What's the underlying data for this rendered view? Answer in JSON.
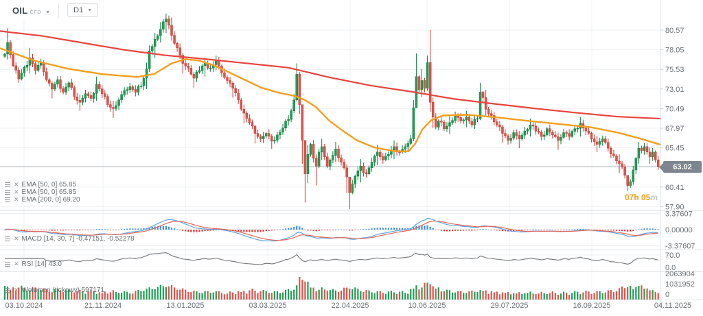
{
  "toolbar": {
    "symbol": "OIL",
    "market": "CFD",
    "timeframe": "D1"
  },
  "indicators": {
    "ema_labels": [
      {
        "label": "EMA [50, 0] 65.85"
      },
      {
        "label": "EMA [50, 0] 65.85"
      },
      {
        "label": "EMA [200, 0] 69.20"
      }
    ],
    "macd_label": "MACD [14, 30, 7] -0.47151, -0.52278",
    "rsi_label": "RSI [14] 43.0",
    "volume_label": "Wolumen (tickowy) 597171"
  },
  "timer": {
    "value": "07h 05",
    "suffix": "m"
  },
  "current_price": {
    "text": "63.02",
    "value": 63.02
  },
  "axes": {
    "price_ticks": [
      "80.57",
      "78.05",
      "75.53",
      "73.01",
      "70.49",
      "67.97",
      "65.45",
      "60.41",
      "57.90"
    ],
    "macd_ticks": [
      "3.37607",
      "0.00000",
      "-3.37607"
    ],
    "rsi_ticks": [
      "70.0",
      "0.0"
    ],
    "volume_ticks": [
      "2063904",
      "1031952",
      "0"
    ],
    "date_ticks": [
      "03.10.2024",
      "21.11.2024",
      "13.01.2025",
      "03.03.2025",
      "22.04.2025",
      "10.06.2025",
      "29.07.2025",
      "16.09.2025",
      "04.11.2025"
    ]
  },
  "chart_data": {
    "type": "candlestick",
    "title": "OIL CFD D1",
    "x_range": [
      "03.10.2024",
      "04.11.2025"
    ],
    "y_range": [
      57.9,
      82.7
    ],
    "n_candles": 236,
    "last_close": 63.02,
    "candle_keyframes": [
      [
        0,
        77.5
      ],
      [
        1,
        79.0,
        80.8,
        76.8
      ],
      [
        3,
        76.0
      ],
      [
        5,
        74.3
      ],
      [
        7,
        75.8
      ],
      [
        9,
        77.0,
        78.3,
        75.0
      ],
      [
        11,
        75.4
      ],
      [
        13,
        76.4
      ],
      [
        15,
        74.2
      ],
      [
        17,
        73.0,
        74.0,
        71.8
      ],
      [
        19,
        74.2
      ],
      [
        21,
        72.6
      ],
      [
        23,
        73.8
      ],
      [
        25,
        72.0
      ],
      [
        27,
        71.3,
        72.3,
        70.2
      ],
      [
        29,
        72.4
      ],
      [
        31,
        71.8
      ],
      [
        33,
        73.6,
        74.6,
        71.5
      ],
      [
        35,
        72.4
      ],
      [
        37,
        71.0
      ],
      [
        39,
        70.5,
        71.5,
        69.3
      ],
      [
        41,
        71.6
      ],
      [
        43,
        72.8
      ],
      [
        45,
        73.3
      ],
      [
        47,
        72.6
      ],
      [
        49,
        73.4
      ],
      [
        51,
        75.6,
        76.4,
        73.0
      ],
      [
        52,
        77.9,
        78.6,
        75.2
      ],
      [
        54,
        79.4,
        80.2,
        77.0
      ],
      [
        56,
        80.7,
        81.6,
        79.0
      ],
      [
        58,
        82.0,
        82.7,
        80.2
      ],
      [
        59,
        81.2
      ],
      [
        60,
        79.9,
        82.2,
        79.2
      ],
      [
        62,
        78.3
      ],
      [
        64,
        76.3,
        77.6,
        75.0
      ],
      [
        66,
        75.7
      ],
      [
        68,
        74.4,
        75.2,
        73.2
      ],
      [
        70,
        75.4
      ],
      [
        72,
        76.3,
        77.0,
        74.6
      ],
      [
        74,
        75.7
      ],
      [
        76,
        76.6,
        77.3,
        75.4
      ],
      [
        78,
        75.1
      ],
      [
        80,
        74.1
      ],
      [
        82,
        73.1,
        74.0,
        71.9
      ],
      [
        84,
        71.6
      ],
      [
        86,
        69.9,
        71.0,
        68.6
      ],
      [
        88,
        68.7
      ],
      [
        90,
        67.3,
        68.3,
        66.0
      ],
      [
        92,
        66.6
      ],
      [
        94,
        67.3
      ],
      [
        96,
        66.3,
        67.2,
        65.3
      ],
      [
        98,
        67.1
      ],
      [
        100,
        68.0
      ],
      [
        102,
        69.1
      ],
      [
        103,
        70.2
      ],
      [
        104,
        71.6,
        72.4,
        69.9
      ],
      [
        105,
        74.9,
        76.3,
        71.4
      ],
      [
        106,
        71.0,
        75.2,
        69.8
      ],
      [
        107,
        66.4,
        70.8,
        63.4
      ],
      [
        108,
        62.1,
        66.2,
        58.4
      ],
      [
        109,
        64.6,
        65.8,
        60.9
      ],
      [
        110,
        65.9
      ],
      [
        111,
        64.1
      ],
      [
        112,
        63.1,
        64.6,
        60.6
      ],
      [
        113,
        64.9
      ],
      [
        114,
        65.6,
        66.6,
        63.9
      ],
      [
        115,
        64.3
      ],
      [
        116,
        63.1
      ],
      [
        117,
        63.9
      ],
      [
        119,
        65.3,
        66.2,
        63.6
      ],
      [
        121,
        63.6
      ],
      [
        123,
        61.7,
        63.3,
        59.6
      ],
      [
        124,
        59.7,
        61.3,
        57.6
      ],
      [
        125,
        60.8
      ],
      [
        126,
        61.8
      ],
      [
        128,
        63.1,
        64.0,
        61.0
      ],
      [
        130,
        62.1
      ],
      [
        132,
        63.6
      ],
      [
        134,
        64.9,
        65.8,
        63.2
      ],
      [
        136,
        63.9
      ],
      [
        138,
        64.6
      ],
      [
        140,
        65.6,
        66.4,
        64.0
      ],
      [
        142,
        64.9
      ],
      [
        144,
        65.6
      ],
      [
        145,
        66.0
      ],
      [
        146,
        66.6
      ],
      [
        147,
        70.6,
        71.6,
        66.3
      ],
      [
        148,
        74.6,
        77.6,
        72.2
      ],
      [
        149,
        72.9
      ],
      [
        150,
        74.1,
        75.6,
        72.0
      ],
      [
        151,
        73.1
      ],
      [
        152,
        76.4,
        77.3,
        72.8
      ],
      [
        153,
        71.3,
        80.6,
        70.1
      ],
      [
        154,
        69.4,
        71.9,
        68.0
      ],
      [
        155,
        68.1
      ],
      [
        156,
        68.9
      ],
      [
        158,
        67.9
      ],
      [
        160,
        68.7,
        69.6,
        67.2
      ],
      [
        162,
        69.6
      ],
      [
        164,
        68.9
      ],
      [
        166,
        69.4,
        70.2,
        68.1
      ],
      [
        168,
        68.4
      ],
      [
        170,
        69.2
      ],
      [
        171,
        72.6,
        73.8,
        69.0
      ],
      [
        172,
        71.9
      ],
      [
        173,
        70.4,
        72.9,
        69.6
      ],
      [
        175,
        69.6
      ],
      [
        177,
        68.4
      ],
      [
        179,
        67.3,
        68.4,
        66.1
      ],
      [
        181,
        66.4
      ],
      [
        183,
        67.4
      ],
      [
        185,
        66.6,
        67.6,
        65.4
      ],
      [
        187,
        67.6
      ],
      [
        189,
        68.4,
        69.2,
        66.9
      ],
      [
        191,
        67.6
      ],
      [
        193,
        66.9
      ],
      [
        195,
        67.9
      ],
      [
        197,
        67.1
      ],
      [
        199,
        66.4,
        67.4,
        65.2
      ],
      [
        201,
        67.4
      ],
      [
        203,
        66.9
      ],
      [
        205,
        67.9
      ],
      [
        207,
        68.6,
        69.4,
        66.9
      ],
      [
        209,
        67.6
      ],
      [
        211,
        66.6
      ],
      [
        213,
        65.9,
        67.0,
        64.9
      ],
      [
        215,
        66.6
      ],
      [
        217,
        65.4
      ],
      [
        219,
        64.4
      ],
      [
        221,
        63.4,
        64.6,
        62.2
      ],
      [
        223,
        61.9
      ],
      [
        224,
        60.6,
        61.9,
        59.9
      ],
      [
        225,
        61.1
      ],
      [
        226,
        62.6
      ],
      [
        227,
        64.1
      ],
      [
        228,
        65.4,
        66.2,
        63.4
      ],
      [
        229,
        65.1
      ],
      [
        230,
        65.6
      ],
      [
        231,
        64.9
      ],
      [
        232,
        64.3,
        65.5,
        63.4
      ],
      [
        233,
        64.9
      ],
      [
        234,
        63.9
      ],
      [
        235,
        63.02,
        64.4,
        62.6
      ]
    ],
    "ema50_path": [
      [
        0,
        78.25
      ],
      [
        50,
        76.65
      ],
      [
        100,
        75.6
      ],
      [
        150,
        74.9
      ],
      [
        200,
        74.55
      ],
      [
        225,
        74.95
      ],
      [
        250,
        76.3
      ],
      [
        270,
        76.85
      ],
      [
        290,
        76.65
      ],
      [
        310,
        76.1
      ],
      [
        330,
        75.3
      ],
      [
        355,
        74.25
      ],
      [
        380,
        73.2
      ],
      [
        405,
        72.55
      ],
      [
        430,
        72.1
      ],
      [
        445,
        71.55
      ],
      [
        460,
        70.7
      ],
      [
        480,
        68.9
      ],
      [
        500,
        67.6
      ],
      [
        520,
        66.4
      ],
      [
        545,
        65.5
      ],
      [
        575,
        65.0
      ],
      [
        595,
        65.0
      ],
      [
        605,
        66.0
      ],
      [
        615,
        67.8
      ],
      [
        628,
        69.0
      ],
      [
        645,
        69.6
      ],
      [
        680,
        69.7
      ],
      [
        720,
        69.4
      ],
      [
        760,
        69.0
      ],
      [
        820,
        68.45
      ],
      [
        860,
        68.1
      ],
      [
        900,
        67.4
      ],
      [
        930,
        66.7
      ],
      [
        962,
        65.85
      ]
    ],
    "ema200_path": [
      [
        0,
        80.45
      ],
      [
        60,
        79.85
      ],
      [
        120,
        78.95
      ],
      [
        180,
        78.05
      ],
      [
        240,
        77.35
      ],
      [
        300,
        76.85
      ],
      [
        360,
        76.3
      ],
      [
        420,
        75.75
      ],
      [
        480,
        74.5
      ],
      [
        540,
        73.45
      ],
      [
        600,
        72.65
      ],
      [
        660,
        71.75
      ],
      [
        720,
        71.1
      ],
      [
        780,
        70.5
      ],
      [
        840,
        69.95
      ],
      [
        900,
        69.45
      ],
      [
        962,
        69.2
      ]
    ],
    "volume_keyframes": [
      [
        0,
        1250000
      ],
      [
        2,
        900000
      ],
      [
        5,
        1100000
      ],
      [
        8,
        800000
      ],
      [
        12,
        950000
      ],
      [
        16,
        700000
      ],
      [
        20,
        850000
      ],
      [
        25,
        650000
      ],
      [
        30,
        750000
      ],
      [
        35,
        600000
      ],
      [
        40,
        700000
      ],
      [
        45,
        550000
      ],
      [
        50,
        800000
      ],
      [
        54,
        950000
      ],
      [
        58,
        1150000
      ],
      [
        62,
        900000
      ],
      [
        66,
        700000
      ],
      [
        70,
        600000
      ],
      [
        75,
        650000
      ],
      [
        80,
        550000
      ],
      [
        85,
        700000
      ],
      [
        90,
        800000
      ],
      [
        95,
        600000
      ],
      [
        100,
        650000
      ],
      [
        104,
        900000
      ],
      [
        105,
        1300000
      ],
      [
        106,
        2063904
      ],
      [
        107,
        1800000
      ],
      [
        108,
        1650000
      ],
      [
        110,
        1100000
      ],
      [
        113,
        900000
      ],
      [
        116,
        800000
      ],
      [
        120,
        700000
      ],
      [
        124,
        1000000
      ],
      [
        128,
        750000
      ],
      [
        132,
        650000
      ],
      [
        136,
        600000
      ],
      [
        140,
        650000
      ],
      [
        144,
        600000
      ],
      [
        147,
        1000000
      ],
      [
        148,
        1300000
      ],
      [
        150,
        1100000
      ],
      [
        153,
        1400000
      ],
      [
        155,
        1000000
      ],
      [
        158,
        750000
      ],
      [
        162,
        650000
      ],
      [
        166,
        600000
      ],
      [
        170,
        700000
      ],
      [
        172,
        800000
      ],
      [
        176,
        650000
      ],
      [
        180,
        600000
      ],
      [
        184,
        550000
      ],
      [
        188,
        600000
      ],
      [
        192,
        550000
      ],
      [
        196,
        600000
      ],
      [
        200,
        550000
      ],
      [
        204,
        600000
      ],
      [
        208,
        650000
      ],
      [
        212,
        600000
      ],
      [
        216,
        650000
      ],
      [
        220,
        750000
      ],
      [
        224,
        1150000
      ],
      [
        226,
        950000
      ],
      [
        228,
        1250000
      ],
      [
        230,
        1000000
      ],
      [
        232,
        850000
      ],
      [
        234,
        700000
      ],
      [
        235,
        597171
      ]
    ],
    "indicator_params": {
      "ema_fast": 50,
      "ema_slow": 200,
      "macd": [
        14,
        30,
        7
      ],
      "rsi": 14
    },
    "colors": {
      "up": "#1f9e54",
      "up_border": "#0f7a3c",
      "down": "#e0534c",
      "down_border": "#c23b32",
      "ema50": "#f59e1b",
      "ema200": "#e8433c",
      "macd_line": "#5aa7e0",
      "macd_signal": "#e8635c",
      "macd_hist_pos": "#3b8ede",
      "macd_hist_neg": "#e23b35",
      "rsi_line": "#70757a",
      "grid": "#eef0f3",
      "panel_border": "#dfe3e6",
      "axis_text": "#6b7176",
      "price_line": "#a6abb0",
      "badge_bg": "#7d858e"
    }
  }
}
